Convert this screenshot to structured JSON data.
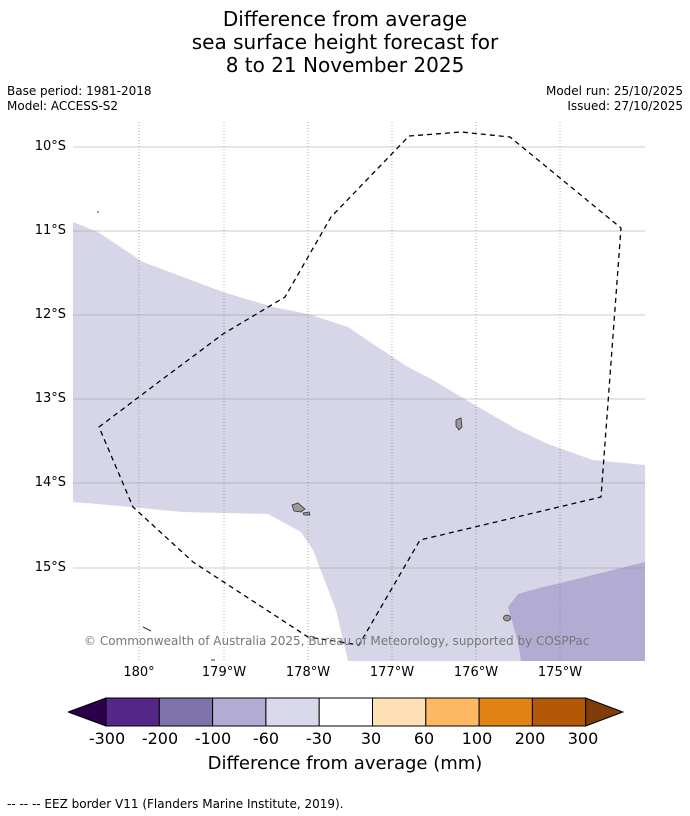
{
  "title": {
    "line1": "Difference from average",
    "line2": "sea surface height forecast for",
    "line3": "8 to 21 November 2025"
  },
  "meta": {
    "base_period": "Base period: 1981-2018",
    "model": "Model: ACCESS-S2",
    "model_run": "Model run: 25/10/2025",
    "issued": "Issued: 27/10/2025"
  },
  "map": {
    "lat_labels": [
      "10°S",
      "11°S",
      "12°S",
      "13°S",
      "14°S",
      "15°S"
    ],
    "lon_labels": [
      "180°",
      "179°W",
      "178°W",
      "177°W",
      "176°W",
      "175°W"
    ],
    "copyright": "© Commonwealth of Australia 2025, Bureau of Meteorology, supported by COSPPac",
    "colors": {
      "light_purple": "#d6d6e8",
      "mid_purple": "#b2abd2",
      "land": "#999999",
      "grid": "#999999"
    }
  },
  "colorbar": {
    "title": "Difference from average (mm)",
    "ticks": [
      "-300",
      "-200",
      "-100",
      "-60",
      "-30",
      "30",
      "60",
      "100",
      "200",
      "300"
    ],
    "colors": [
      "#2d004b",
      "#542788",
      "#8073ac",
      "#b2abd2",
      "#d8daeb",
      "#ffffff",
      "#fee0b6",
      "#fdb863",
      "#e08214",
      "#b35806",
      "#7f3b08"
    ]
  },
  "footnote": "--  --  -- EEZ border V11 (Flanders Marine Institute, 2019)."
}
